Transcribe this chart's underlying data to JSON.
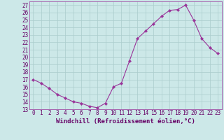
{
  "x": [
    0,
    1,
    2,
    3,
    4,
    5,
    6,
    7,
    8,
    9,
    10,
    11,
    12,
    13,
    14,
    15,
    16,
    17,
    18,
    19,
    20,
    21,
    22,
    23
  ],
  "y": [
    17.0,
    16.5,
    15.8,
    15.0,
    14.5,
    14.0,
    13.8,
    13.4,
    13.2,
    13.8,
    16.0,
    16.5,
    19.5,
    22.5,
    23.5,
    24.5,
    25.5,
    26.3,
    26.4,
    27.0,
    25.0,
    22.5,
    21.3,
    20.5
  ],
  "line_color": "#993399",
  "marker": "D",
  "marker_size": 2.2,
  "bg_color": "#cce8e8",
  "grid_color": "#aacccc",
  "xlabel": "Windchill (Refroidissement éolien,°C)",
  "ylabel": "",
  "title": "",
  "xlim": [
    -0.5,
    23.5
  ],
  "ylim": [
    13,
    27.5
  ],
  "yticks": [
    13,
    14,
    15,
    16,
    17,
    18,
    19,
    20,
    21,
    22,
    23,
    24,
    25,
    26,
    27
  ],
  "xticks": [
    0,
    1,
    2,
    3,
    4,
    5,
    6,
    7,
    8,
    9,
    10,
    11,
    12,
    13,
    14,
    15,
    16,
    17,
    18,
    19,
    20,
    21,
    22,
    23
  ],
  "tick_color": "#660066",
  "tick_fontsize": 5.5,
  "xlabel_fontsize": 6.5,
  "label_color": "#660066",
  "spine_color": "#993399"
}
